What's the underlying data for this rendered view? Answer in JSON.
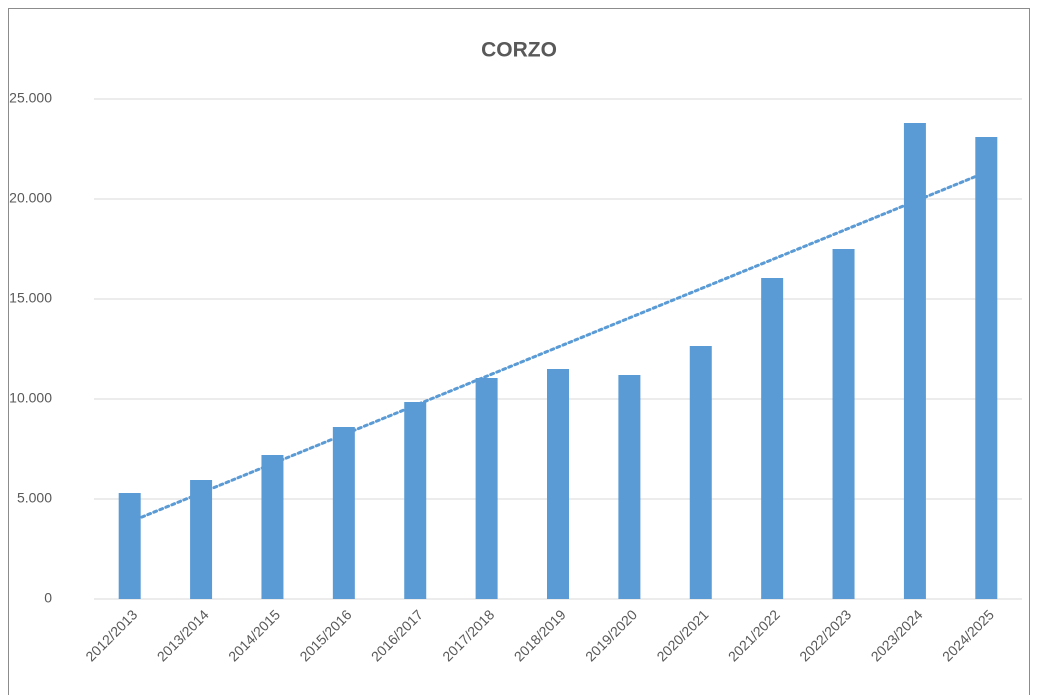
{
  "chart_data": {
    "type": "bar",
    "title": "CORZO",
    "categories": [
      "2012/2013",
      "2013/2014",
      "2014/2015",
      "2015/2016",
      "2016/2017",
      "2017/2018",
      "2018/2019",
      "2019/2020",
      "2020/2021",
      "2021/2022",
      "2022/2023",
      "2023/2024",
      "2024/2025"
    ],
    "values": [
      5300,
      5950,
      7200,
      8600,
      9850,
      11050,
      11500,
      11200,
      12650,
      16050,
      17500,
      23800,
      23100
    ],
    "color": "#5b9bd5",
    "ylim": [
      0,
      25000
    ],
    "yticks": [
      0,
      {
        "value": 5000,
        "label": "5.000"
      },
      {
        "value": 10000,
        "label": "10.000"
      },
      {
        "value": 15000,
        "label": "15.000"
      },
      {
        "value": 20000,
        "label": "20.000"
      },
      {
        "value": 25000,
        "label": "25.000"
      }
    ],
    "grid": true,
    "trendline": "linear"
  }
}
